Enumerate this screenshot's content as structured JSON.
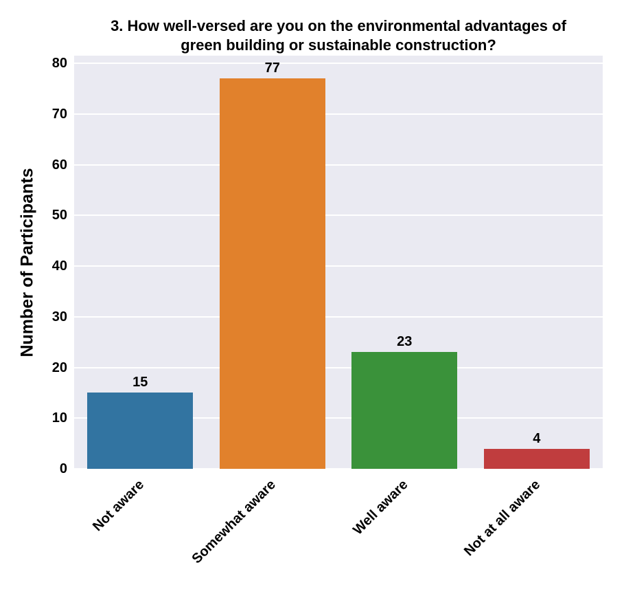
{
  "figure": {
    "background_color": "#ffffff",
    "plot_background_color": "#eaeaf2",
    "gridline_color": "#ffffff",
    "text_color": "#000000"
  },
  "chart_data": {
    "type": "bar",
    "title": "3. How well-versed are you on the environmental advantages of green building or sustainable construction?",
    "xlabel": "",
    "ylabel": "Number of Participants",
    "categories": [
      "Not aware",
      "Somewhat aware",
      "Well aware",
      "Not at all aware"
    ],
    "values": [
      15,
      77,
      23,
      4
    ],
    "value_labels": [
      "15",
      "77",
      "23",
      "4"
    ],
    "bar_colors": [
      "#3274a1",
      "#e1812c",
      "#3a923a",
      "#c03d3e"
    ],
    "yticks": [
      0,
      10,
      20,
      30,
      40,
      50,
      60,
      70,
      80
    ],
    "ytick_labels": [
      "0",
      "10",
      "20",
      "30",
      "40",
      "50",
      "60",
      "70",
      "80"
    ],
    "ylim": [
      0,
      81.5
    ],
    "grid": "horizontal",
    "legend": "none",
    "x_tick_rotation": 45,
    "bar_width_fraction": 0.8
  }
}
